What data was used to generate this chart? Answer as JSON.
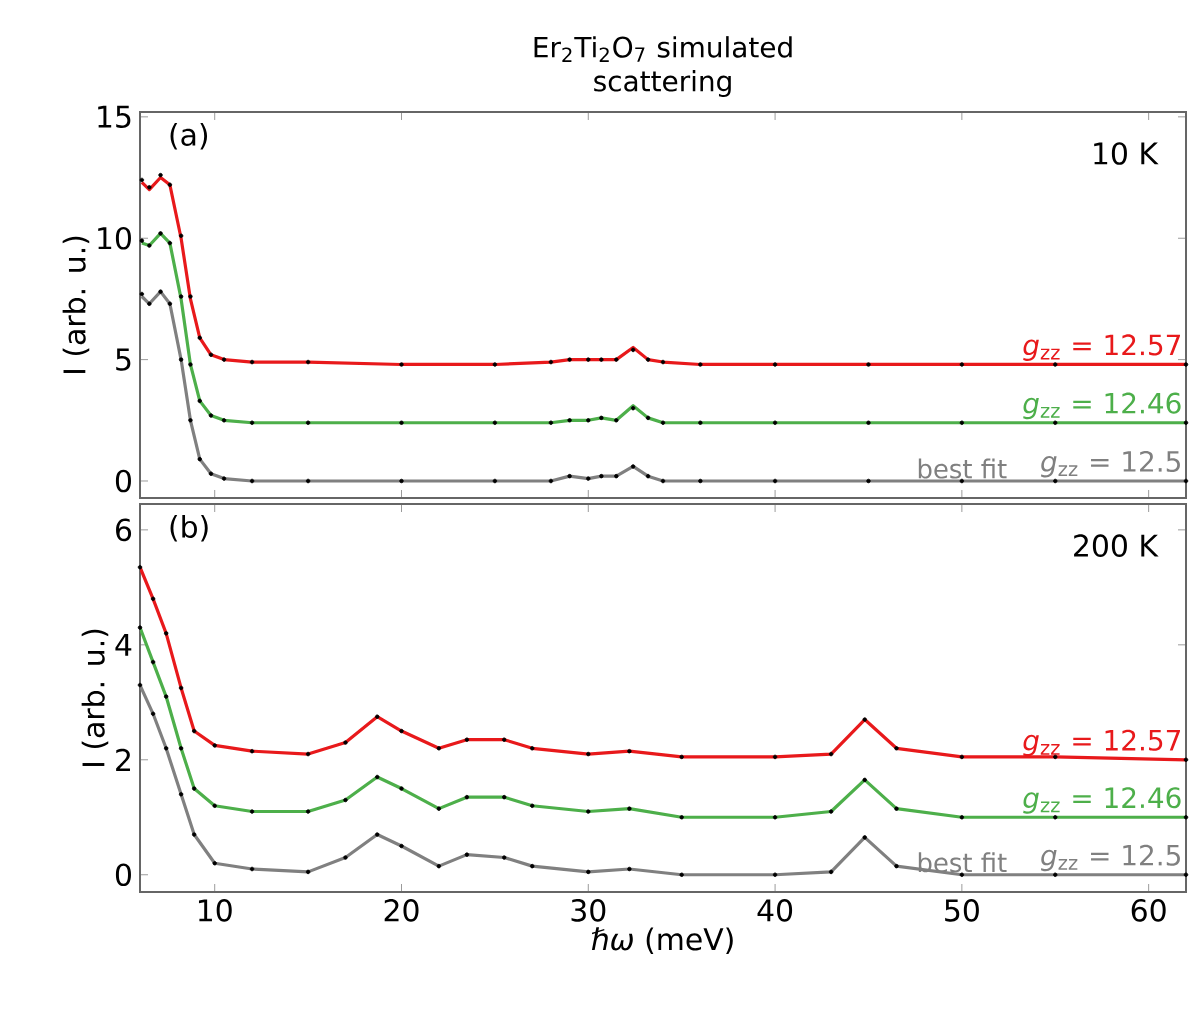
{
  "chart_data": [
    {
      "type": "line",
      "title": "Er$_{2}$Ti$_{2}$O$_{7}$ simulated scattering",
      "ylabel": "I (arb. u.)",
      "annotations": [
        "(a)",
        "10 K",
        {
          "text": "best fit",
          "x": 50,
          "y": 0
        }
      ],
      "x": [
        6.1,
        6.5,
        7.1,
        7.6,
        8.2,
        8.7,
        9.2,
        9.8,
        10.5,
        12,
        15,
        20,
        25,
        28,
        29,
        30,
        30.7,
        31.5,
        32.4,
        33.2,
        34,
        36,
        40,
        45,
        50,
        55,
        62
      ],
      "xlim": [
        6,
        62
      ],
      "xticks": [
        10,
        20,
        30,
        40,
        50,
        60
      ],
      "ylim": [
        -0.7,
        15.2
      ],
      "yticks": [
        0,
        5,
        10,
        15
      ],
      "tick_labels": "y",
      "series": [
        {
          "type": "scatter",
          "color": "#000000",
          "values": [
            12.4,
            12.1,
            12.6,
            12.2,
            10.1,
            7.6,
            5.9,
            5.2,
            5.0,
            4.9,
            4.9,
            4.8,
            4.8,
            4.9,
            5.0,
            5.0,
            5.0,
            5.0,
            5.4,
            5.0,
            4.9,
            4.8,
            4.8,
            4.8,
            4.8,
            4.8,
            4.8
          ]
        },
        {
          "type": "scatter",
          "color": "#000000",
          "values": [
            9.9,
            9.7,
            10.2,
            9.8,
            7.6,
            4.8,
            3.3,
            2.7,
            2.5,
            2.4,
            2.4,
            2.4,
            2.4,
            2.4,
            2.5,
            2.5,
            2.6,
            2.5,
            3.0,
            2.6,
            2.4,
            2.4,
            2.4,
            2.4,
            2.4,
            2.4,
            2.4
          ]
        },
        {
          "type": "scatter",
          "color": "#000000",
          "values": [
            7.7,
            7.3,
            7.8,
            7.3,
            5.0,
            2.5,
            0.9,
            0.3,
            0.1,
            0.0,
            0.0,
            0,
            0,
            0.0,
            0.2,
            0.1,
            0.2,
            0.2,
            0.6,
            0.2,
            0.0,
            0,
            0,
            0,
            0,
            0,
            0
          ]
        },
        {
          "name": "*g*$_{zz}$ = 12.57",
          "color": "#e8191b",
          "values": [
            12.3,
            12.0,
            12.5,
            12.2,
            10.0,
            7.5,
            5.9,
            5.2,
            5.0,
            4.9,
            4.9,
            4.8,
            4.8,
            4.9,
            5.0,
            5.0,
            5.0,
            5.0,
            5.5,
            5.0,
            4.9,
            4.8,
            4.8,
            4.8,
            4.8,
            4.8,
            4.8
          ]
        },
        {
          "name": "*g*$_{zz}$ = 12.46",
          "color": "#4daf4a",
          "values": [
            9.8,
            9.7,
            10.2,
            9.8,
            7.5,
            4.8,
            3.3,
            2.7,
            2.5,
            2.4,
            2.4,
            2.4,
            2.4,
            2.4,
            2.5,
            2.5,
            2.6,
            2.5,
            3.1,
            2.6,
            2.4,
            2.4,
            2.4,
            2.4,
            2.4,
            2.4,
            2.4
          ]
        },
        {
          "name": "*g*$_{zz}$ = 12.5",
          "color": "#808080",
          "values": [
            7.6,
            7.3,
            7.8,
            7.3,
            5.0,
            2.5,
            0.9,
            0.3,
            0.1,
            0.0,
            0.0,
            0,
            0,
            0.0,
            0.2,
            0.1,
            0.2,
            0.2,
            0.6,
            0.2,
            0.0,
            0,
            0,
            0,
            0,
            0,
            0
          ]
        }
      ]
    },
    {
      "type": "line",
      "ylabel": "I (arb. u.)",
      "xlabel": "*ℏω* (meV)",
      "annotations": [
        "(b)",
        "200 K",
        {
          "text": "best fit",
          "x": 50,
          "y": 0
        }
      ],
      "x": [
        6.0,
        6.7,
        7.4,
        8.2,
        8.9,
        10,
        12,
        15,
        17,
        18.7,
        20,
        22,
        23.5,
        25.5,
        27,
        30,
        32.2,
        35,
        40,
        43,
        44.8,
        46.5,
        50,
        55,
        62
      ],
      "xlim": [
        6,
        62
      ],
      "xticks": [
        10,
        20,
        30,
        40,
        50,
        60
      ],
      "ylim": [
        -0.3,
        6.45
      ],
      "yticks": [
        0,
        2,
        4,
        6
      ],
      "series": [
        {
          "type": "scatter",
          "color": "#000000",
          "values": [
            5.35,
            4.8,
            4.2,
            3.25,
            2.5,
            2.25,
            2.15,
            2.1,
            2.3,
            2.75,
            2.5,
            2.2,
            2.35,
            2.35,
            2.2,
            2.1,
            2.15,
            2.05,
            2.05,
            2.1,
            2.7,
            2.2,
            2.05,
            2.05,
            2.0
          ]
        },
        {
          "type": "scatter",
          "color": "#000000",
          "values": [
            4.3,
            3.7,
            3.1,
            2.2,
            1.5,
            1.2,
            1.1,
            1.1,
            1.3,
            1.7,
            1.5,
            1.15,
            1.35,
            1.35,
            1.2,
            1.1,
            1.15,
            1.0,
            1.0,
            1.1,
            1.65,
            1.15,
            1.0,
            1.0,
            1.0
          ]
        },
        {
          "type": "scatter",
          "color": "#000000",
          "values": [
            3.3,
            2.8,
            2.2,
            1.4,
            0.7,
            0.2,
            0.1,
            0.05,
            0.3,
            0.7,
            0.5,
            0.15,
            0.35,
            0.3,
            0.15,
            0.05,
            0.1,
            0.0,
            0.0,
            0.05,
            0.65,
            0.15,
            0.0,
            0.0,
            0.0
          ]
        },
        {
          "name": "*g*$_{zz}$ = 12.57",
          "color": "#e8191b",
          "values": [
            5.35,
            4.8,
            4.2,
            3.25,
            2.5,
            2.25,
            2.15,
            2.1,
            2.3,
            2.75,
            2.5,
            2.2,
            2.35,
            2.35,
            2.2,
            2.1,
            2.15,
            2.05,
            2.05,
            2.1,
            2.7,
            2.2,
            2.05,
            2.05,
            2.0
          ]
        },
        {
          "name": "*g*$_{zz}$ = 12.46",
          "color": "#4daf4a",
          "values": [
            4.3,
            3.7,
            3.1,
            2.2,
            1.5,
            1.2,
            1.1,
            1.1,
            1.3,
            1.7,
            1.5,
            1.15,
            1.35,
            1.35,
            1.2,
            1.1,
            1.15,
            1.0,
            1.0,
            1.1,
            1.65,
            1.15,
            1.0,
            1.0,
            1.0
          ]
        },
        {
          "name": "*g*$_{zz}$ = 12.5",
          "color": "#808080",
          "values": [
            3.3,
            2.8,
            2.2,
            1.4,
            0.7,
            0.2,
            0.1,
            0.05,
            0.3,
            0.7,
            0.5,
            0.15,
            0.35,
            0.3,
            0.15,
            0.05,
            0.1,
            0.0,
            0.0,
            0.05,
            0.65,
            0.15,
            0.0,
            0.0,
            0.0
          ]
        }
      ]
    }
  ]
}
